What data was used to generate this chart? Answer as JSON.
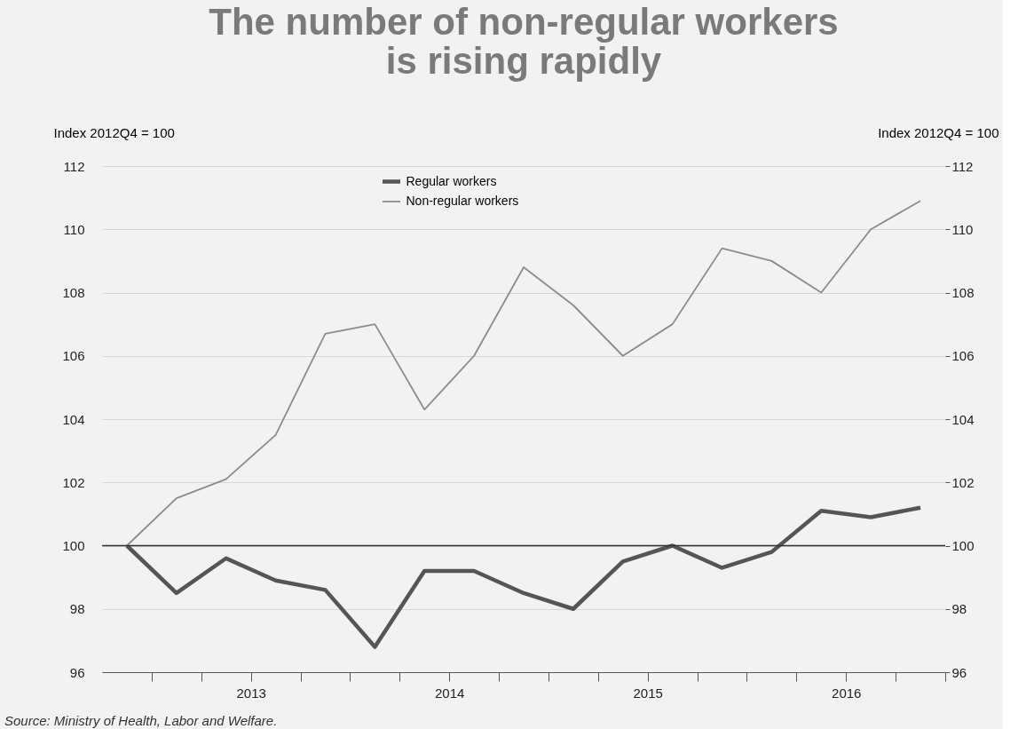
{
  "chart_data": {
    "type": "line",
    "title": "The number of non-regular workers\nis rising rapidly",
    "ylabel": "Index 2012Q4 = 100",
    "y2label": "Index 2012Q4 = 100",
    "x": [
      2012.875,
      2013.125,
      2013.375,
      2013.625,
      2013.875,
      2014.125,
      2014.375,
      2014.625,
      2014.875,
      2015.125,
      2015.375,
      2015.625,
      2015.875,
      2016.125,
      2016.375,
      2016.625,
      2016.875
    ],
    "series": [
      {
        "name": "Regular workers",
        "color": "#555555",
        "values": [
          100,
          98.5,
          99.6,
          98.9,
          98.6,
          96.8,
          99.2,
          99.2,
          98.5,
          98.0,
          99.5,
          100.0,
          99.3,
          99.8,
          101.1,
          100.9,
          101.2
        ]
      },
      {
        "name": "Non-regular workers",
        "color": "#8c8c8c",
        "values": [
          100,
          101.5,
          102.1,
          103.5,
          106.7,
          107.0,
          104.3,
          106.0,
          108.8,
          107.6,
          106.0,
          107.0,
          109.4,
          109.0,
          108.0,
          110.0,
          110.9
        ]
      }
    ],
    "xlim": [
      2012.75,
      2017.0
    ],
    "xticks": [
      {
        "value": 2013.0,
        "label": null
      },
      {
        "value": 2013.25,
        "label": null
      },
      {
        "value": 2013.5,
        "label": "2013"
      },
      {
        "value": 2013.75,
        "label": null
      },
      {
        "value": 2014.0,
        "label": null
      },
      {
        "value": 2014.25,
        "label": null
      },
      {
        "value": 2014.5,
        "label": "2014"
      },
      {
        "value": 2014.75,
        "label": null
      },
      {
        "value": 2015.0,
        "label": null
      },
      {
        "value": 2015.25,
        "label": null
      },
      {
        "value": 2015.5,
        "label": "2015"
      },
      {
        "value": 2015.75,
        "label": null
      },
      {
        "value": 2016.0,
        "label": null
      },
      {
        "value": 2016.25,
        "label": null
      },
      {
        "value": 2016.5,
        "label": "2016"
      },
      {
        "value": 2016.75,
        "label": null
      },
      {
        "value": 2017.0,
        "label": null
      }
    ],
    "ylim": [
      96,
      112
    ],
    "yticks": [
      96,
      98,
      100,
      102,
      104,
      106,
      108,
      110,
      112
    ],
    "y2lim": [
      96,
      112
    ],
    "y2ticks": [
      96,
      98,
      100,
      102,
      104,
      106,
      108,
      110,
      112
    ],
    "ref_lines": [
      {
        "axis": "y",
        "value": 100,
        "color": "#333333"
      }
    ],
    "grid": "y",
    "legend": "top",
    "marker": "none",
    "line_style": "solid",
    "annotations": [
      "Source: Ministry of Health, Labor and Welfare."
    ]
  }
}
